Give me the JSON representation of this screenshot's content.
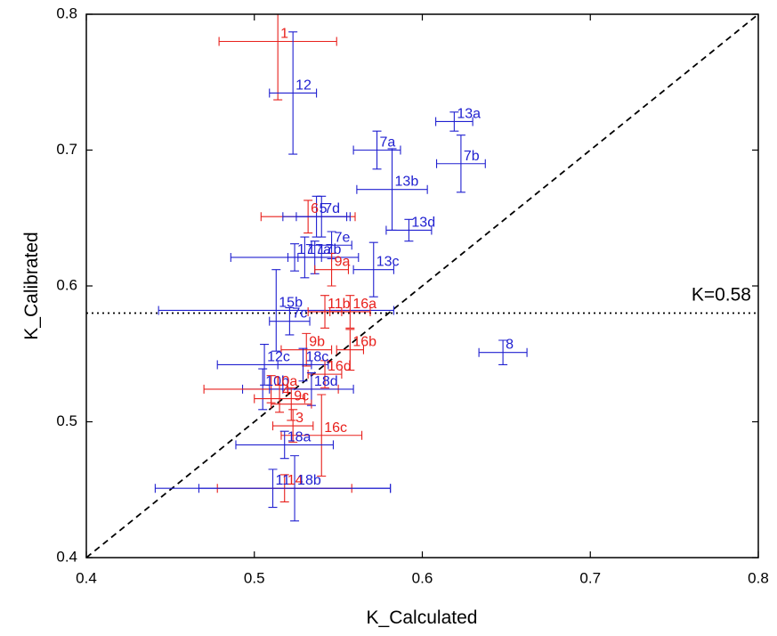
{
  "chart_data": {
    "type": "scatter",
    "x_label": "K_Calculated",
    "y_label": "K_Calibrated",
    "xlim": [
      0.4,
      0.8
    ],
    "ylim": [
      0.4,
      0.8
    ],
    "xticks": [
      0.4,
      0.5,
      0.6,
      0.7,
      0.8
    ],
    "yticks": [
      0.4,
      0.5,
      0.6,
      0.7,
      0.8
    ],
    "identity_line": true,
    "hline": {
      "value": 0.58,
      "label": "K=0.58"
    },
    "points": [
      {
        "label": "1",
        "x": 0.514,
        "y": 0.78,
        "xerr": 0.035,
        "yerr": 0.043,
        "color": "#e8201c"
      },
      {
        "label": "12",
        "x": 0.523,
        "y": 0.742,
        "xerr": 0.014,
        "yerr": 0.045,
        "color": "#2020d0"
      },
      {
        "label": "13a",
        "x": 0.619,
        "y": 0.721,
        "xerr": 0.011,
        "yerr": 0.007,
        "color": "#2020d0"
      },
      {
        "label": "7a",
        "x": 0.573,
        "y": 0.7,
        "xerr": 0.014,
        "yerr": 0.014,
        "color": "#2020d0"
      },
      {
        "label": "7b",
        "x": 0.623,
        "y": 0.69,
        "xerr": 0.0145,
        "yerr": 0.021,
        "color": "#2020d0"
      },
      {
        "label": "13b",
        "x": 0.582,
        "y": 0.671,
        "xerr": 0.021,
        "yerr": 0.03,
        "color": "#2020d0"
      },
      {
        "label": "13d",
        "x": 0.592,
        "y": 0.641,
        "xerr": 0.0135,
        "yerr": 0.008,
        "color": "#2020d0"
      },
      {
        "label": "6",
        "x": 0.532,
        "y": 0.651,
        "xerr": 0.028,
        "yerr": 0.012,
        "color": "#e8201c"
      },
      {
        "label": "5",
        "x": 0.537,
        "y": 0.651,
        "xerr": 0.02,
        "yerr": 0.015,
        "color": "#2020d0"
      },
      {
        "label": "7d",
        "x": 0.54,
        "y": 0.651,
        "xerr": 0.015,
        "yerr": 0.015,
        "color": "#2020d0"
      },
      {
        "label": "7e",
        "x": 0.546,
        "y": 0.63,
        "xerr": 0.012,
        "yerr": 0.01,
        "color": "#2020d0"
      },
      {
        "label": "17",
        "x": 0.524,
        "y": 0.621,
        "xerr": 0.038,
        "yerr": 0.01,
        "color": "#2020d0"
      },
      {
        "label": "17a",
        "x": 0.53,
        "y": 0.621,
        "xerr": 0.01,
        "yerr": 0.015,
        "color": "#2020d0"
      },
      {
        "label": "17b",
        "x": 0.536,
        "y": 0.621,
        "xerr": 0.01,
        "yerr": 0.012,
        "color": "#2020d0"
      },
      {
        "label": "9a",
        "x": 0.546,
        "y": 0.612,
        "xerr": 0.01,
        "yerr": 0.012,
        "color": "#e8201c"
      },
      {
        "label": "13c",
        "x": 0.571,
        "y": 0.612,
        "xerr": 0.012,
        "yerr": 0.02,
        "color": "#2020d0"
      },
      {
        "label": "15b",
        "x": 0.513,
        "y": 0.582,
        "xerr": 0.07,
        "yerr": 0.03,
        "color": "#2020d0"
      },
      {
        "label": "7c",
        "x": 0.521,
        "y": 0.574,
        "xerr": 0.012,
        "yerr": 0.01,
        "color": "#2020d0"
      },
      {
        "label": "11b",
        "x": 0.542,
        "y": 0.581,
        "xerr": 0.01,
        "yerr": 0.012,
        "color": "#e8201c"
      },
      {
        "label": "16a",
        "x": 0.557,
        "y": 0.581,
        "xerr": 0.012,
        "yerr": 0.012,
        "color": "#e8201c"
      },
      {
        "label": "9b",
        "x": 0.531,
        "y": 0.553,
        "xerr": 0.015,
        "yerr": 0.012,
        "color": "#e8201c"
      },
      {
        "label": "16b",
        "x": 0.557,
        "y": 0.553,
        "xerr": 0.008,
        "yerr": 0.015,
        "color": "#e8201c"
      },
      {
        "label": "8",
        "x": 0.648,
        "y": 0.551,
        "xerr": 0.0143,
        "yerr": 0.009,
        "color": "#2020d0"
      },
      {
        "label": "12c",
        "x": 0.506,
        "y": 0.542,
        "xerr": 0.028,
        "yerr": 0.015,
        "color": "#2020d0"
      },
      {
        "label": "18c",
        "x": 0.529,
        "y": 0.542,
        "xerr": 0.015,
        "yerr": 0.012,
        "color": "#2020d0"
      },
      {
        "label": "16d",
        "x": 0.542,
        "y": 0.535,
        "xerr": 0.01,
        "yerr": 0.01,
        "color": "#e8201c"
      },
      {
        "label": "10b",
        "x": 0.505,
        "y": 0.524,
        "xerr": 0.012,
        "yerr": 0.015,
        "color": "#2020d0"
      },
      {
        "label": "10a",
        "x": 0.51,
        "y": 0.524,
        "xerr": 0.04,
        "yerr": 0.01,
        "color": "#e8201c"
      },
      {
        "label": "18d",
        "x": 0.534,
        "y": 0.524,
        "xerr": 0.025,
        "yerr": 0.012,
        "color": "#2020d0"
      },
      {
        "label": "4",
        "x": 0.515,
        "y": 0.517,
        "xerr": 0.015,
        "yerr": 0.01,
        "color": "#e8201c"
      },
      {
        "label": "9c",
        "x": 0.522,
        "y": 0.513,
        "xerr": 0.012,
        "yerr": 0.012,
        "color": "#e8201c"
      },
      {
        "label": "3",
        "x": 0.523,
        "y": 0.497,
        "xerr": 0.012,
        "yerr": 0.012,
        "color": "#e8201c"
      },
      {
        "label": "16c",
        "x": 0.54,
        "y": 0.49,
        "xerr": 0.024,
        "yerr": 0.03,
        "color": "#e8201c"
      },
      {
        "label": "18a",
        "x": 0.518,
        "y": 0.483,
        "xerr": 0.029,
        "yerr": 0.01,
        "color": "#2020d0"
      },
      {
        "label": "11",
        "x": 0.511,
        "y": 0.451,
        "xerr": 0.07,
        "yerr": 0.014,
        "color": "#2020d0"
      },
      {
        "label": "14",
        "x": 0.518,
        "y": 0.451,
        "xerr": 0.04,
        "yerr": 0.01,
        "color": "#e8201c"
      },
      {
        "label": "18b",
        "x": 0.524,
        "y": 0.451,
        "xerr": 0.057,
        "yerr": 0.024,
        "color": "#2020d0"
      }
    ]
  }
}
